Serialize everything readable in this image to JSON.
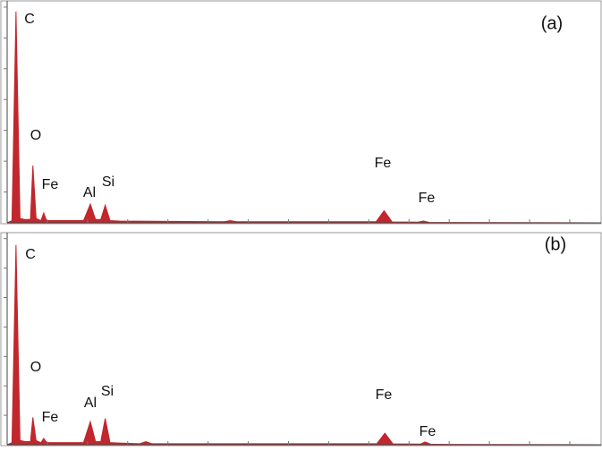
{
  "chart_data": [
    {
      "type": "area",
      "panel_label": "(a)",
      "x": [
        0,
        0.12,
        0.22,
        0.32,
        0.45,
        0.58,
        0.64,
        0.72,
        0.84,
        0.91,
        0.98,
        1.2,
        1.9,
        2.07,
        2.2,
        2.33,
        2.44,
        2.56,
        2.8,
        5.4,
        5.55,
        5.7,
        9.18,
        9.38,
        9.58,
        10.22,
        10.36,
        10.5,
        14.78
      ],
      "series": [
        {
          "color": "#c1272d",
          "values": [
            0,
            1,
            96,
            2,
            1.5,
            1.5,
            26,
            2,
            1,
            4.5,
            1,
            1,
            1,
            8.5,
            1.5,
            1.5,
            8,
            1,
            0.8,
            0.5,
            1,
            0.5,
            0.5,
            5.5,
            0.4,
            0.3,
            0.8,
            0.2,
            0
          ]
        }
      ],
      "annotations": [
        "C",
        "O",
        "Fe",
        "Al",
        "Si",
        "Fe",
        "Fe"
      ],
      "xlim": [
        0,
        14.78
      ],
      "xticks": [
        1,
        2,
        3,
        4,
        5,
        6,
        7,
        8,
        9,
        10,
        11,
        12,
        13,
        14
      ],
      "ylim": [
        0,
        100
      ],
      "yticks": [
        14,
        28,
        42,
        56,
        70,
        84,
        98
      ]
    },
    {
      "type": "area",
      "panel_label": "(b)",
      "x": [
        0,
        0.12,
        0.22,
        0.32,
        0.45,
        0.58,
        0.64,
        0.72,
        0.84,
        0.91,
        0.98,
        1.2,
        1.9,
        2.07,
        2.2,
        2.33,
        2.44,
        2.56,
        2.8,
        3.3,
        3.45,
        3.6,
        9.2,
        9.4,
        9.6,
        10.28,
        10.4,
        10.55,
        14.78
      ],
      "series": [
        {
          "color": "#c1272d",
          "values": [
            0,
            1,
            95,
            2,
            1.5,
            1.5,
            13,
            2,
            1,
            3,
            1,
            1,
            1,
            11,
            1.5,
            1.5,
            12.5,
            1,
            0.8,
            0.5,
            1.5,
            0.5,
            0.5,
            5.5,
            0.4,
            0.3,
            1.3,
            0.2,
            0
          ]
        }
      ],
      "annotations": [
        "C",
        "O",
        "Fe",
        "Al",
        "Si",
        "Fe",
        "Fe"
      ],
      "xlim": [
        0,
        14.78
      ],
      "xticks": [
        1,
        2,
        3,
        4,
        5,
        6,
        7,
        8,
        9,
        10,
        11,
        12,
        13,
        14
      ],
      "ylim": [
        0,
        100
      ],
      "yticks": [
        14,
        28,
        42,
        56,
        70,
        84,
        98
      ]
    }
  ]
}
